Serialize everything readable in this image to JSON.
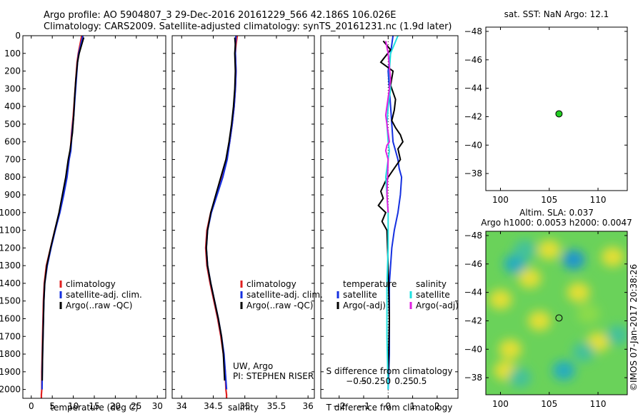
{
  "titles": {
    "line1": "Argo profile: AO 5904807_3 29-Dec-2016 20161229_566 42.186S 106.026E",
    "line2": "Climatology: CARS2009. Satellite-adjusted climatology: synTS_20161231.nc (1.9d later)"
  },
  "credit": "©IMOS 07-Jan-2017 20:38:26",
  "colors": {
    "climatology": "#e02020",
    "satellite": "#1530e0",
    "argo": "#000000",
    "sal_satellite": "#20e0e0",
    "sal_argo": "#e020e0",
    "marker": "#22cc22"
  },
  "chart_data": [
    {
      "type": "line",
      "xlabel": "temperature (deg C)",
      "ylabel": "",
      "xlim": [
        -2,
        32
      ],
      "ylim": [
        2050,
        0
      ],
      "xticks": [
        0,
        5,
        10,
        15,
        20,
        25,
        30
      ],
      "yticks": [
        0,
        100,
        200,
        300,
        400,
        500,
        600,
        700,
        800,
        900,
        1000,
        1100,
        1200,
        1300,
        1400,
        1500,
        1600,
        1700,
        1800,
        1900,
        2000
      ],
      "legend": [
        "climatology",
        "satellite-adj. clim.",
        "Argo(..raw -QC)"
      ],
      "series": [
        {
          "name": "climatology",
          "color": "#e02020",
          "x": [
            12.0,
            11.6,
            11.2,
            10.9,
            10.6,
            10.3,
            10.0,
            9.6,
            9.3,
            9.0,
            8.4,
            7.6,
            6.7,
            5.6,
            4.6,
            3.6,
            3.1,
            2.9,
            2.8,
            2.7,
            2.6,
            2.5,
            2.5,
            2.4,
            2.4
          ],
          "y": [
            0,
            50,
            100,
            150,
            250,
            350,
            450,
            550,
            650,
            700,
            800,
            900,
            1000,
            1100,
            1200,
            1300,
            1400,
            1500,
            1600,
            1700,
            1800,
            1900,
            2000,
            2030,
            2060
          ]
        },
        {
          "name": "satellite-adj. clim.",
          "color": "#1530e0",
          "x": [
            12.3,
            11.8,
            11.3,
            11.0,
            10.7,
            10.4,
            10.1,
            9.7,
            9.4,
            9.0,
            8.5,
            7.7,
            6.8,
            5.7,
            4.7,
            3.8,
            3.2,
            3.0,
            2.9,
            2.8,
            2.7,
            2.6,
            2.55
          ],
          "y": [
            0,
            50,
            100,
            150,
            250,
            350,
            450,
            550,
            650,
            700,
            800,
            900,
            1000,
            1100,
            1200,
            1300,
            1400,
            1500,
            1600,
            1700,
            1800,
            1900,
            2000
          ]
        },
        {
          "name": "Argo(..raw -QC)",
          "color": "#000000",
          "x": [
            12.5,
            12.0,
            11.4,
            11.0,
            10.6,
            10.3,
            10.1,
            9.8,
            9.2,
            8.8,
            8.2,
            7.4,
            6.6,
            5.6,
            4.6,
            3.7,
            3.2,
            3.0,
            2.9,
            2.8,
            2.7,
            2.6
          ],
          "y": [
            10,
            50,
            100,
            150,
            250,
            350,
            450,
            550,
            650,
            700,
            800,
            900,
            1000,
            1100,
            1200,
            1300,
            1400,
            1500,
            1600,
            1700,
            1800,
            1950
          ]
        }
      ]
    },
    {
      "type": "line",
      "xlabel": "salinity",
      "ylabel": "",
      "xlim": [
        33.85,
        36.1
      ],
      "ylim": [
        2050,
        0
      ],
      "xticks": [
        34,
        34.5,
        35,
        35.5,
        36
      ],
      "legend": [
        "climatology",
        "satellite-adj. clim.",
        "Argo(..raw -QC)"
      ],
      "annotation": [
        "UW, Argo",
        "PI: STEPHEN RISER"
      ],
      "series": [
        {
          "name": "climatology",
          "color": "#e02020",
          "x": [
            34.88,
            34.86,
            34.85,
            34.86,
            34.85,
            34.83,
            34.8,
            34.76,
            34.71,
            34.64,
            34.55,
            34.46,
            34.4,
            34.38,
            34.4,
            34.45,
            34.51,
            34.57,
            34.62,
            34.66,
            34.69,
            34.7,
            34.71,
            34.71
          ],
          "y": [
            0,
            50,
            100,
            200,
            300,
            400,
            500,
            600,
            700,
            800,
            900,
            1000,
            1100,
            1200,
            1300,
            1400,
            1500,
            1600,
            1700,
            1800,
            1900,
            2000,
            2030,
            2060
          ]
        },
        {
          "name": "satellite-adj. clim.",
          "color": "#1530e0",
          "x": [
            34.86,
            34.85,
            34.85,
            34.86,
            34.85,
            34.83,
            34.8,
            34.76,
            34.72,
            34.65,
            34.56,
            34.47,
            34.41,
            34.39,
            34.41,
            34.46,
            34.52,
            34.58,
            34.63,
            34.67,
            34.69,
            34.71
          ],
          "y": [
            0,
            50,
            100,
            200,
            300,
            400,
            500,
            600,
            700,
            800,
            900,
            1000,
            1100,
            1200,
            1300,
            1400,
            1500,
            1600,
            1700,
            1800,
            1900,
            2000
          ]
        },
        {
          "name": "Argo(..raw -QC)",
          "color": "#000000",
          "x": [
            34.84,
            34.85,
            34.84,
            34.85,
            34.84,
            34.82,
            34.79,
            34.75,
            34.7,
            34.62,
            34.54,
            34.46,
            34.41,
            34.39,
            34.41,
            34.46,
            34.52,
            34.58,
            34.63,
            34.66,
            34.68
          ],
          "y": [
            10,
            50,
            100,
            200,
            300,
            400,
            500,
            600,
            700,
            800,
            900,
            1000,
            1100,
            1200,
            1300,
            1400,
            1500,
            1600,
            1700,
            1800,
            1950
          ]
        }
      ]
    },
    {
      "type": "line",
      "xlabel": "T difference from climatology",
      "top_label": "S difference from climatology",
      "xlim": [
        -2.75,
        2.85
      ],
      "ylim": [
        2050,
        0
      ],
      "xticks": [
        -2,
        -1,
        0,
        1,
        2
      ],
      "top_ticks": [
        "-0.5",
        "-0.25",
        "0",
        "0.25",
        "0.5"
      ],
      "top_tick_values": [
        -0.5,
        -0.25,
        0,
        0.25,
        0.5
      ],
      "legend_left": {
        "title": "temperature",
        "items": [
          "satellite",
          "Argo(-adj)"
        ]
      },
      "legend_right": {
        "title": "salinity",
        "items": [
          "satellite",
          "Argo(-adj)"
        ]
      },
      "series": [
        {
          "name": "temperature satellite",
          "color": "#1530e0",
          "x": [
            0.2,
            0.1,
            0.0,
            0.05,
            0.1,
            0.15,
            0.2,
            0.3,
            0.4,
            0.45,
            0.55,
            0.5,
            0.4,
            0.25,
            0.15,
            0.1,
            0.05,
            0.05,
            0.05,
            0.05,
            0.05,
            0.0
          ],
          "y": [
            0,
            100,
            200,
            300,
            400,
            500,
            600,
            650,
            700,
            750,
            800,
            900,
            1000,
            1100,
            1200,
            1300,
            1400,
            1500,
            1600,
            1700,
            1800,
            2000
          ]
        },
        {
          "name": "temperature Argo(-adj)",
          "color": "#000000",
          "x": [
            -0.2,
            0.1,
            -0.3,
            0.2,
            0.1,
            0.3,
            0.25,
            0.15,
            0.3,
            0.5,
            0.6,
            0.4,
            0.5,
            0.2,
            -0.1,
            -0.3,
            -0.2,
            -0.4,
            -0.1,
            -0.25,
            -0.05,
            0.0,
            0.05,
            0.0
          ],
          "y": [
            30,
            80,
            150,
            200,
            280,
            360,
            420,
            480,
            520,
            560,
            600,
            640,
            700,
            760,
            820,
            880,
            920,
            960,
            1000,
            1050,
            1100,
            1300,
            1600,
            1950
          ]
        },
        {
          "name": "salinity satellite",
          "color": "#20e0e0",
          "x": [
            0.4,
            0.1,
            0.05,
            0.1,
            0.0,
            -0.05,
            0.0,
            0.05,
            0.0,
            -0.1,
            -0.05,
            0.0,
            0.0,
            -0.05,
            -0.05,
            0.0
          ],
          "y": [
            0,
            100,
            200,
            300,
            400,
            500,
            600,
            650,
            700,
            800,
            900,
            1000,
            1200,
            1400,
            1700,
            2000
          ]
        },
        {
          "name": "salinity Argo(-adj)",
          "color": "#e020e0",
          "x": [
            -0.1,
            0.0,
            0.1,
            -0.1,
            0.05,
            -0.05,
            -0.1,
            0.0,
            -0.05,
            0.0
          ],
          "y": [
            30,
            100,
            250,
            450,
            600,
            620,
            650,
            700,
            900,
            1000
          ]
        }
      ]
    },
    {
      "type": "scatter",
      "title": "sat. SST: NaN Argo: 12.1",
      "xlim": [
        98.5,
        113
      ],
      "ylim": [
        -48.3,
        -36.8
      ],
      "xticks": [
        100,
        105,
        110
      ],
      "yticks": [
        -38,
        -40,
        -42,
        -44,
        -46,
        -48
      ],
      "points": [
        {
          "x": 106.0,
          "y": -42.2
        }
      ]
    },
    {
      "type": "heatmap",
      "title": "Altim. SLA: 0.037",
      "subtitle": "Argo h1000: 0.0053 h2000: 0.0047",
      "xlim": [
        98.5,
        113
      ],
      "ylim": [
        -48.3,
        -36.8
      ],
      "xticks": [
        100,
        105,
        110
      ],
      "yticks": [
        -38,
        -40,
        -42,
        -44,
        -46,
        -48
      ],
      "points": [
        {
          "x": 106.0,
          "y": -42.2
        }
      ],
      "cells": [
        {
          "x": 101.0,
          "y": -40.0,
          "v": 0.2
        },
        {
          "x": 100.0,
          "y": -43.5,
          "v": 0.2
        },
        {
          "x": 103.0,
          "y": -45.0,
          "v": 0.2
        },
        {
          "x": 104.0,
          "y": -42.0,
          "v": 0.2
        },
        {
          "x": 108.0,
          "y": -44.0,
          "v": 0.2
        },
        {
          "x": 110.0,
          "y": -40.5,
          "v": 0.2
        },
        {
          "x": 111.5,
          "y": -46.5,
          "v": 0.2
        },
        {
          "x": 105.0,
          "y": -47.0,
          "v": 0.25
        },
        {
          "x": 100.5,
          "y": -38.5,
          "v": 0.2
        },
        {
          "x": 106.5,
          "y": -38.5,
          "v": -0.15
        },
        {
          "x": 108.5,
          "y": -39.8,
          "v": -0.1
        },
        {
          "x": 101.5,
          "y": -46.0,
          "v": -0.15
        },
        {
          "x": 107.5,
          "y": -46.3,
          "v": -0.25
        },
        {
          "x": 102.5,
          "y": -47.0,
          "v": -0.1
        },
        {
          "x": 102.0,
          "y": -38.0,
          "v": -0.05
        },
        {
          "x": 112.0,
          "y": -41.0,
          "v": -0.05
        },
        {
          "x": 109.0,
          "y": -42.5,
          "v": 0.05
        }
      ]
    }
  ]
}
